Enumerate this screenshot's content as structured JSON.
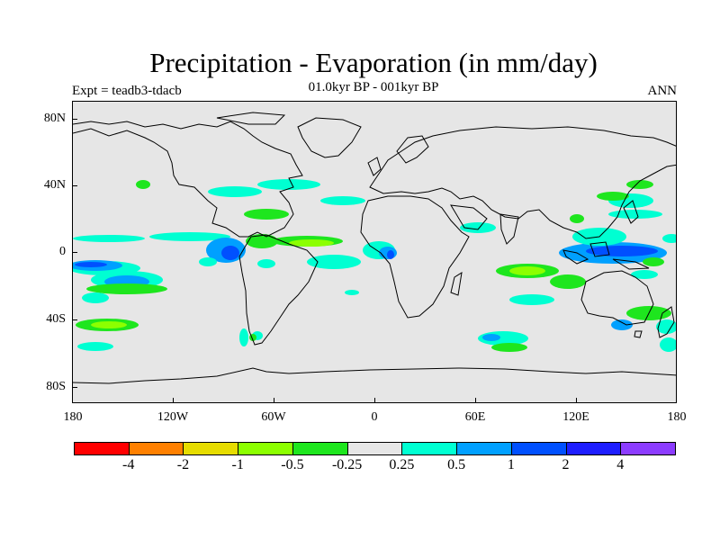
{
  "title": "Precipitation - Evaporation (in mm/day)",
  "subtitle": "01.0kyr BP - 001kyr BP",
  "expt_label": "Expt = teadb3-tdacb",
  "season_label": "ANN",
  "latitude_ticks": [
    "80N",
    "40N",
    "0",
    "40S",
    "80S"
  ],
  "longitude_ticks": [
    "180",
    "120W",
    "60W",
    "0",
    "60E",
    "120E",
    "180"
  ],
  "colorbar": {
    "labels": [
      "-4",
      "-2",
      "-1",
      "-0.5",
      "-0.25",
      "0.25",
      "0.5",
      "1",
      "2",
      "4"
    ],
    "colors": [
      "#ff0000",
      "#ff8000",
      "#e6dc00",
      "#8cff00",
      "#1ee61e",
      "#e6e6e6",
      "#00ffd2",
      "#00a0ff",
      "#0050ff",
      "#1e1eff",
      "#8c3cff"
    ]
  },
  "colors": {
    "ocean_background": "#e6e6e6",
    "coastline": "#000000",
    "green": "#1ee61e",
    "light_green": "#8cff00",
    "cyan": "#00ffd2",
    "light_blue": "#00a0ff",
    "blue": "#0050ff"
  }
}
